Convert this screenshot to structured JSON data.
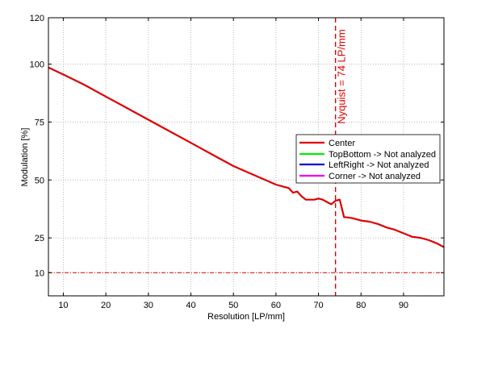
{
  "chart_data": {
    "type": "line",
    "title": "",
    "xlabel": "Resolution [LP/mm]",
    "ylabel": "Modulation [%]",
    "xlim": [
      6.5,
      99.5
    ],
    "ylim": [
      0,
      120
    ],
    "xticks": [
      10,
      20,
      30,
      40,
      50,
      60,
      70,
      80,
      90
    ],
    "yticks": [
      10,
      25,
      50,
      75,
      100,
      120
    ],
    "grid": true,
    "legend_position": "right",
    "series": [
      {
        "name": "Center",
        "color": "#dd0000",
        "x": [
          6.5,
          10,
          15,
          20,
          25,
          30,
          35,
          40,
          45,
          50,
          55,
          60,
          62,
          63,
          64,
          65,
          66,
          67,
          68,
          69,
          70,
          71,
          72,
          73,
          74,
          75,
          76,
          77,
          78,
          80,
          82,
          84,
          86,
          88,
          90,
          92,
          94,
          96,
          98,
          99.5
        ],
        "y": [
          98.5,
          95.5,
          91,
          86,
          81,
          76,
          71,
          66,
          61,
          56,
          52,
          48,
          47,
          46.5,
          44.5,
          45,
          43,
          41.5,
          41.5,
          41.5,
          42,
          41.5,
          40.5,
          39.5,
          41,
          41.5,
          34,
          33.8,
          33.5,
          32.5,
          32,
          31,
          29.5,
          28.5,
          27,
          25.5,
          25,
          24,
          22.5,
          21
        ]
      },
      {
        "name": "TopBottom -> Not analyzed",
        "color": "#00ee00",
        "x": [],
        "y": []
      },
      {
        "name": "LeftRight -> Not analyzed",
        "color": "#0000dd",
        "x": [],
        "y": []
      },
      {
        "name": "Corner -> Not analyzed",
        "color": "#ee00ee",
        "x": [],
        "y": []
      }
    ],
    "annotations": {
      "nyquist_x": 74,
      "nyquist_label": "Nyquist = 74 LP/mm",
      "threshold_y": 10,
      "annotation_color": "#dd0000"
    }
  }
}
